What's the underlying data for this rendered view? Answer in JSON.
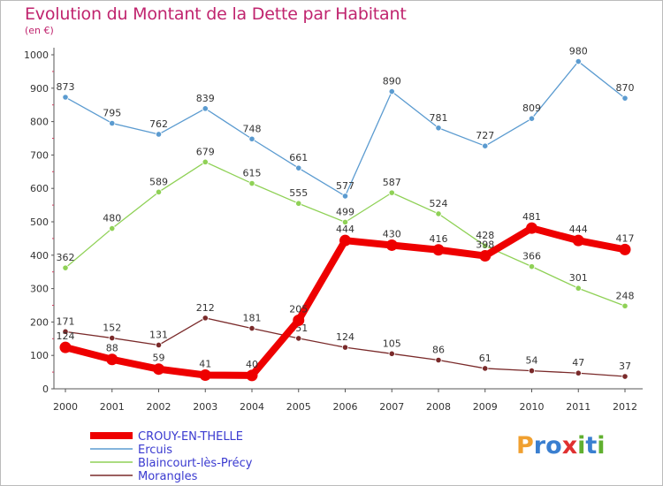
{
  "chart_data": {
    "type": "line",
    "title": "Evolution du Montant de la Dette par Habitant",
    "subtitle": "(en €)",
    "x": [
      "2000",
      "2001",
      "2002",
      "2003",
      "2004",
      "2005",
      "2006",
      "2007",
      "2008",
      "2009",
      "2010",
      "2011",
      "2012"
    ],
    "ylim": [
      0,
      1000
    ],
    "yticks": [
      "0",
      "100",
      "200",
      "300",
      "400",
      "500",
      "600",
      "700",
      "800",
      "900",
      "1000"
    ],
    "grid": false,
    "legend_position": "bottom-left",
    "series": [
      {
        "name": "Ercuis",
        "color": "#5b9bd0",
        "values": [
          873,
          795,
          762,
          839,
          748,
          661,
          577,
          890,
          781,
          727,
          809,
          980,
          870
        ],
        "labels": [
          "873",
          "795",
          "762",
          "839",
          "748",
          "661",
          "577",
          "890",
          "781",
          "727",
          "809",
          "980",
          "870"
        ]
      },
      {
        "name": "Blaincourt-lès-Précy",
        "color": "#8fd156",
        "values": [
          362,
          480,
          589,
          679,
          615,
          555,
          499,
          587,
          524,
          428,
          366,
          301,
          248
        ],
        "labels": [
          "362",
          "480",
          "589",
          "679",
          "615",
          "555",
          "499",
          "587",
          "524",
          "428",
          "366",
          "301",
          "248"
        ]
      },
      {
        "name": "Morangles",
        "color": "#7a2a2a",
        "values": [
          171,
          152,
          131,
          212,
          181,
          151,
          124,
          105,
          86,
          61,
          54,
          47,
          37
        ],
        "labels": [
          "171",
          "152",
          "131",
          "212",
          "181",
          "151",
          "124",
          "105",
          "86",
          "61",
          "54",
          "47",
          "37"
        ]
      },
      {
        "name": "CROUY-EN-THELLE",
        "color": "#ee0000",
        "values": [
          124,
          88,
          59,
          41,
          40,
          205,
          444,
          430,
          416,
          398,
          481,
          444,
          417
        ],
        "labels": [
          "124",
          "88",
          "59",
          "41",
          "40",
          "205",
          "444",
          "430",
          "416",
          "398",
          "481",
          "444",
          "417"
        ]
      }
    ],
    "legend_order": [
      "CROUY-EN-THELLE",
      "Ercuis",
      "Blaincourt-lès-Précy",
      "Morangles"
    ]
  },
  "brand": {
    "text": "Proxiti",
    "letters": [
      "P",
      "r",
      "o",
      "x",
      "i",
      "t",
      "i"
    ],
    "colors": [
      "#f0a030",
      "#3a7fd0",
      "#3a7fd0",
      "#e03030",
      "#60b030",
      "#3a7fd0",
      "#60b030"
    ]
  }
}
